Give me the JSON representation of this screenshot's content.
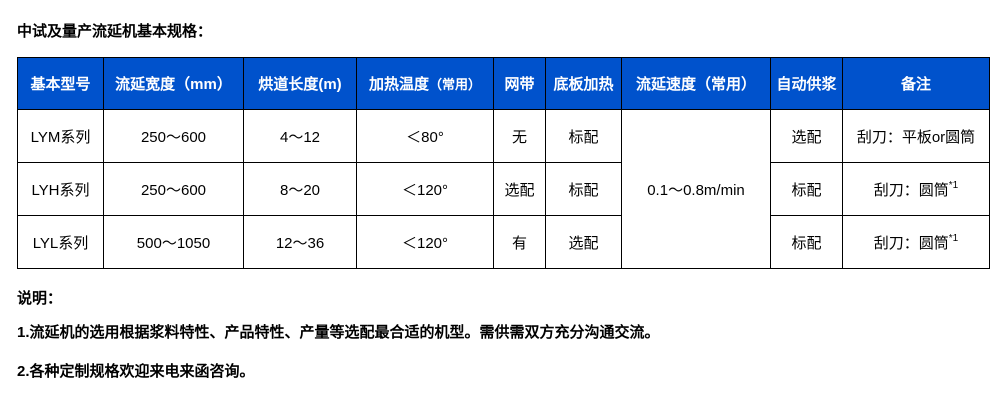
{
  "title": "中试及量产流延机基本规格：",
  "table": {
    "headers": [
      "基本型号",
      "流延宽度（mm）",
      "烘道长度(m)",
      "加热温度",
      "（常用）",
      "网带",
      "底板加热",
      "流延速度（常用）",
      "自动供浆",
      "备注"
    ],
    "rows": [
      {
        "model": "LYM系列",
        "width": "250～600",
        "length": "4～12",
        "temp": "＜80°",
        "belt": "无",
        "heating": "标配",
        "feed": "选配",
        "note": "刮刀：平板or圆筒",
        "sup": ""
      },
      {
        "model": "LYH系列",
        "width": "250～600",
        "length": "8～20",
        "temp": "＜120°",
        "belt": "选配",
        "heating": "标配",
        "feed": "标配",
        "note": "刮刀：圆筒",
        "sup": "*1"
      },
      {
        "model": "LYL系列",
        "width": "500～1050",
        "length": "12～36",
        "temp": "＜120°",
        "belt": "有",
        "heating": "选配",
        "feed": "标配",
        "note": "刮刀：圆筒",
        "sup": "*1"
      }
    ],
    "speed": "0.1～0.8m/min"
  },
  "notes": {
    "heading": "说明：",
    "items": [
      "1.流延机的选用根据浆料特性、产品特性、产量等选配最合适的机型。需供需双方充分沟通交流。",
      "2.各种定制规格欢迎来电来函咨询。"
    ]
  },
  "colors": {
    "header_bg": "#0052cc",
    "header_text": "#ffffff"
  }
}
